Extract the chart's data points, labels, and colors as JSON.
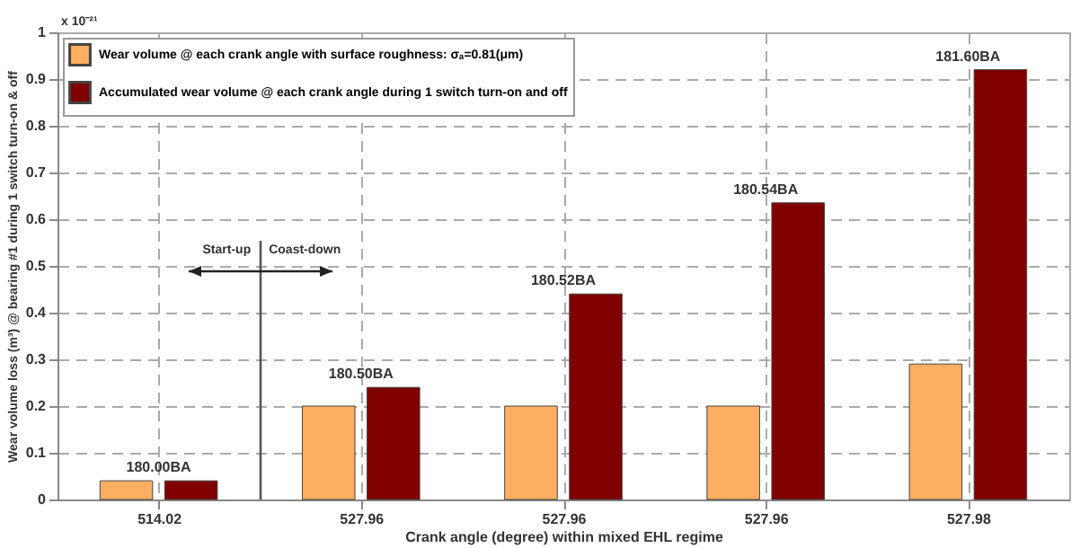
{
  "chart_data": {
    "type": "bar",
    "xlabel": "Crank angle (degree) within mixed EHL regime",
    "ylabel": "Wear volume loss (m³) @ bearing #1 during 1 switch turn-on & off",
    "categories": [
      "514.02",
      "527.96",
      "527.96",
      "527.96",
      "527.98"
    ],
    "series": [
      {
        "name": "Wear volume @ each crank angle with surface roughness: σₐ=0.81(μm)",
        "color": "#fdae61",
        "values": [
          0.04,
          0.2,
          0.2,
          0.2,
          0.29
        ]
      },
      {
        "name": "Accumulated wear volume @ each crank angle during 1 switch turn-on and off",
        "color": "#800000",
        "values": [
          0.04,
          0.24,
          0.44,
          0.635,
          0.92
        ]
      }
    ],
    "ylim": [
      0,
      1
    ],
    "yticks": [
      {
        "value": 0,
        "label": "0"
      },
      0.1,
      0.2,
      0.3,
      0.4,
      0.5,
      0.6,
      0.7,
      0.8,
      0.9,
      {
        "value": 1,
        "label": "1"
      }
    ],
    "grid": true,
    "legend": "top left",
    "annotations": [
      "x 10⁻²¹",
      "Start-up",
      "Coast-down",
      "180.00BA",
      "180.50BA",
      "180.52BA",
      "180.54BA",
      "181.60BA"
    ]
  }
}
